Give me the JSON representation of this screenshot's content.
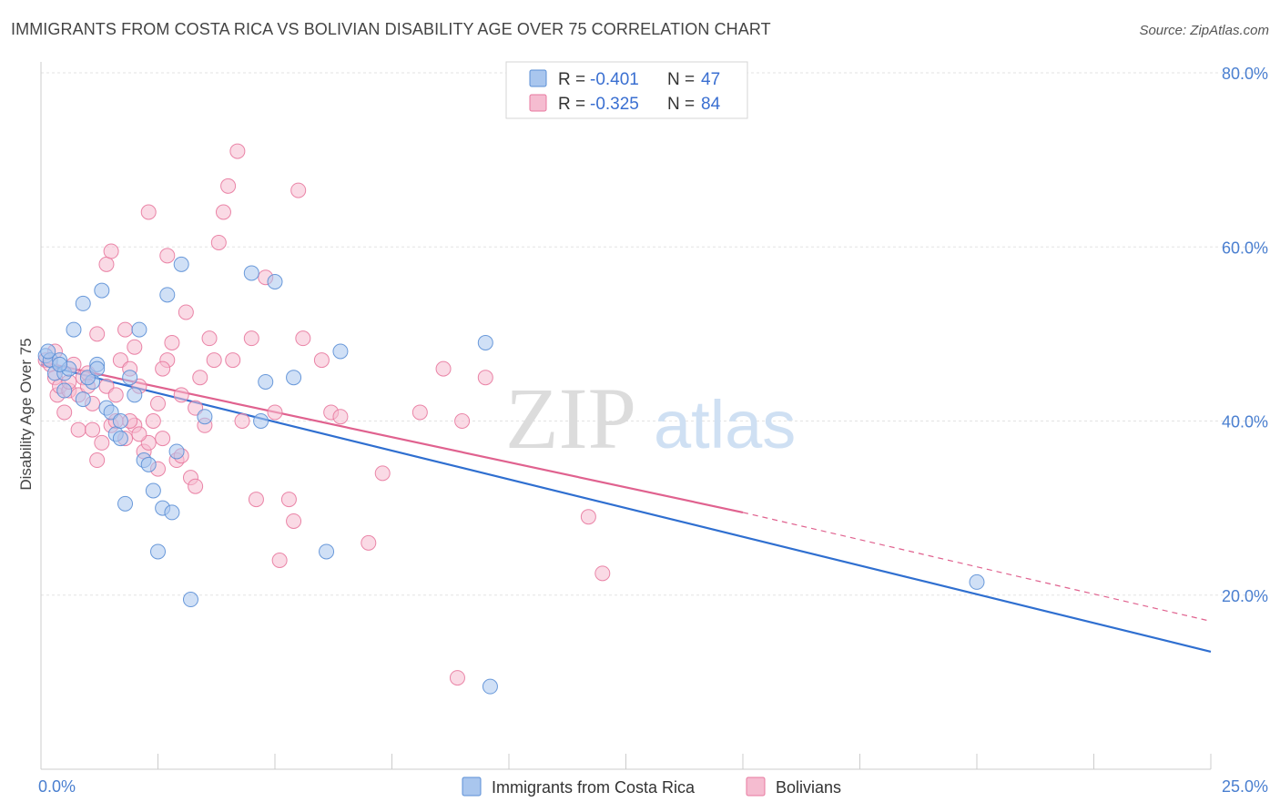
{
  "title": "IMMIGRANTS FROM COSTA RICA VS BOLIVIAN DISABILITY AGE OVER 75 CORRELATION CHART",
  "source": "Source: ZipAtlas.com",
  "watermark": {
    "zip": "ZIP",
    "atlas": "atlas"
  },
  "colors": {
    "blue_fill": "#a9c6ee",
    "blue_stroke": "#5b8fd6",
    "blue_line": "#2f6fd0",
    "pink_fill": "#f5bcd0",
    "pink_stroke": "#e8799f",
    "pink_line": "#e0628f",
    "tick_text": "#4a7fd0",
    "grid": "#e3e3e3"
  },
  "legend": {
    "rows": [
      {
        "r_label": "R =",
        "r_value": "-0.401",
        "n_label": "N =",
        "n_value": "47"
      },
      {
        "r_label": "R =",
        "r_value": "-0.325",
        "n_label": "N =",
        "n_value": "84"
      }
    ]
  },
  "chart_data": {
    "type": "scatter",
    "title": "IMMIGRANTS FROM COSTA RICA VS BOLIVIAN DISABILITY AGE OVER 75 CORRELATION CHART",
    "xlabel": "",
    "ylabel": "Disability Age Over 75",
    "xlim": [
      0,
      25
    ],
    "ylim": [
      0,
      80
    ],
    "x_tick_labels": [
      "0.0%",
      "25.0%"
    ],
    "y_ticks": [
      20,
      40,
      60,
      80
    ],
    "y_tick_labels": [
      "20.0%",
      "40.0%",
      "60.0%",
      "80.0%"
    ],
    "grid": true,
    "legend_position": "top-center",
    "series": [
      {
        "name": "Immigrants from Costa Rica",
        "color": "#a9c6ee",
        "r": -0.401,
        "n": 47,
        "trend": {
          "x": [
            0,
            25
          ],
          "y": [
            46.5,
            13.5
          ]
        },
        "points": [
          [
            0.1,
            47.5
          ],
          [
            0.2,
            47.0
          ],
          [
            0.3,
            45.5
          ],
          [
            0.4,
            47.0
          ],
          [
            0.5,
            45.5
          ],
          [
            0.5,
            43.5
          ],
          [
            0.7,
            50.5
          ],
          [
            0.9,
            53.5
          ],
          [
            0.9,
            42.5
          ],
          [
            1.1,
            44.5
          ],
          [
            1.2,
            46.5
          ],
          [
            1.3,
            55.0
          ],
          [
            1.4,
            41.5
          ],
          [
            1.5,
            41.0
          ],
          [
            1.6,
            38.5
          ],
          [
            1.7,
            38.0
          ],
          [
            1.8,
            30.5
          ],
          [
            1.9,
            45.0
          ],
          [
            2.0,
            43.0
          ],
          [
            2.1,
            50.5
          ],
          [
            2.2,
            35.5
          ],
          [
            2.4,
            32.0
          ],
          [
            2.5,
            25.0
          ],
          [
            2.6,
            30.0
          ],
          [
            2.7,
            54.5
          ],
          [
            2.9,
            36.5
          ],
          [
            3.0,
            58.0
          ],
          [
            3.2,
            19.5
          ],
          [
            3.5,
            40.5
          ],
          [
            4.5,
            57.0
          ],
          [
            4.8,
            44.5
          ],
          [
            5.0,
            56.0
          ],
          [
            5.4,
            45.0
          ],
          [
            6.1,
            25.0
          ],
          [
            6.4,
            48.0
          ],
          [
            9.5,
            49.0
          ],
          [
            9.6,
            9.5
          ],
          [
            20.0,
            21.5
          ],
          [
            0.15,
            48.0
          ],
          [
            0.6,
            46.0
          ],
          [
            1.0,
            45.0
          ],
          [
            1.7,
            40.0
          ],
          [
            2.8,
            29.5
          ],
          [
            0.4,
            46.5
          ],
          [
            1.2,
            46.0
          ],
          [
            2.3,
            35.0
          ],
          [
            4.7,
            40.0
          ]
        ]
      },
      {
        "name": "Bolivians",
        "color": "#f5bcd0",
        "r": -0.325,
        "n": 84,
        "trend": {
          "x": [
            0,
            15
          ],
          "y": [
            46.8,
            29.5
          ]
        },
        "trend_dashed": {
          "x": [
            15,
            25
          ],
          "y": [
            29.5,
            17.0
          ]
        },
        "points": [
          [
            0.1,
            47.0
          ],
          [
            0.2,
            46.5
          ],
          [
            0.3,
            45.0
          ],
          [
            0.35,
            43.0
          ],
          [
            0.4,
            44.0
          ],
          [
            0.5,
            41.0
          ],
          [
            0.6,
            43.5
          ],
          [
            0.7,
            46.5
          ],
          [
            0.8,
            39.0
          ],
          [
            0.9,
            45.0
          ],
          [
            1.0,
            45.5
          ],
          [
            1.1,
            42.0
          ],
          [
            1.2,
            50.0
          ],
          [
            1.3,
            37.5
          ],
          [
            1.4,
            44.0
          ],
          [
            1.5,
            39.5
          ],
          [
            1.6,
            40.0
          ],
          [
            1.7,
            47.0
          ],
          [
            1.8,
            50.5
          ],
          [
            1.9,
            46.0
          ],
          [
            2.0,
            48.5
          ],
          [
            2.1,
            44.0
          ],
          [
            2.2,
            36.5
          ],
          [
            2.3,
            37.5
          ],
          [
            2.4,
            40.0
          ],
          [
            2.5,
            42.0
          ],
          [
            2.6,
            38.0
          ],
          [
            2.7,
            47.0
          ],
          [
            2.8,
            49.0
          ],
          [
            2.9,
            35.5
          ],
          [
            3.0,
            43.0
          ],
          [
            3.1,
            52.5
          ],
          [
            3.2,
            33.5
          ],
          [
            3.3,
            41.5
          ],
          [
            3.4,
            45.0
          ],
          [
            3.5,
            39.5
          ],
          [
            3.6,
            49.5
          ],
          [
            3.7,
            47.0
          ],
          [
            3.8,
            60.5
          ],
          [
            3.9,
            64.0
          ],
          [
            4.0,
            67.0
          ],
          [
            4.2,
            71.0
          ],
          [
            4.3,
            40.0
          ],
          [
            4.5,
            49.5
          ],
          [
            4.6,
            31.0
          ],
          [
            4.8,
            56.5
          ],
          [
            5.0,
            41.0
          ],
          [
            5.1,
            24.0
          ],
          [
            5.3,
            31.0
          ],
          [
            5.4,
            28.5
          ],
          [
            5.5,
            66.5
          ],
          [
            5.6,
            49.5
          ],
          [
            6.0,
            47.0
          ],
          [
            6.2,
            41.0
          ],
          [
            6.4,
            40.5
          ],
          [
            7.0,
            26.0
          ],
          [
            7.3,
            34.0
          ],
          [
            8.1,
            41.0
          ],
          [
            8.6,
            46.0
          ],
          [
            8.9,
            10.5
          ],
          [
            9.0,
            40.0
          ],
          [
            9.5,
            45.0
          ],
          [
            11.7,
            29.0
          ],
          [
            12.0,
            22.5
          ],
          [
            1.4,
            58.0
          ],
          [
            1.5,
            59.5
          ],
          [
            2.3,
            64.0
          ],
          [
            2.7,
            59.0
          ],
          [
            1.1,
            39.0
          ],
          [
            0.8,
            43.0
          ],
          [
            1.6,
            43.0
          ],
          [
            2.0,
            39.5
          ],
          [
            2.5,
            34.5
          ],
          [
            3.0,
            36.0
          ],
          [
            1.2,
            35.5
          ],
          [
            0.6,
            44.5
          ],
          [
            1.9,
            40.0
          ],
          [
            2.6,
            46.0
          ],
          [
            0.3,
            48.0
          ],
          [
            1.0,
            44.0
          ],
          [
            4.1,
            47.0
          ],
          [
            2.1,
            38.5
          ],
          [
            3.3,
            32.5
          ],
          [
            1.8,
            38.0
          ]
        ]
      }
    ]
  }
}
